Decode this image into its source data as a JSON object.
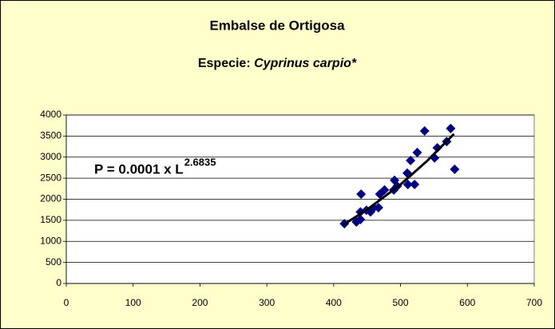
{
  "chart_data": {
    "type": "scatter",
    "title": "Embalse de Ortigosa",
    "subtitle": [
      "Especie:",
      "Cyprinus carpio*"
    ],
    "annotation": {
      "text": "P = 0.0001 x L",
      "exponent": "2.6835"
    },
    "xlim": [
      0,
      700
    ],
    "xticks": [
      0,
      100,
      200,
      300,
      400,
      500,
      600,
      700
    ],
    "ylim": [
      0,
      4000
    ],
    "yticks": [
      0,
      500,
      1000,
      1500,
      2000,
      2500,
      3000,
      3500,
      4000
    ],
    "grid": true,
    "series": [
      {
        "color": "#000080",
        "x": [
          416,
          434,
          440,
          441,
          440,
          449,
          455,
          460,
          467,
          469,
          476,
          490,
          491,
          495,
          510,
          511,
          515,
          521,
          525,
          536,
          551,
          555,
          569,
          575,
          581
        ],
        "values": [
          1420,
          1460,
          1520,
          2120,
          1700,
          1740,
          1700,
          1800,
          1800,
          2120,
          2220,
          2220,
          2450,
          2310,
          2620,
          2350,
          2920,
          2350,
          3110,
          3620,
          2980,
          3220,
          3370,
          3680,
          2710
        ]
      }
    ],
    "trendline": {
      "color": "#000000",
      "x": [
        415,
        450,
        500,
        540,
        580
      ],
      "values": [
        1400,
        1754,
        2350,
        2913,
        3550
      ]
    }
  }
}
